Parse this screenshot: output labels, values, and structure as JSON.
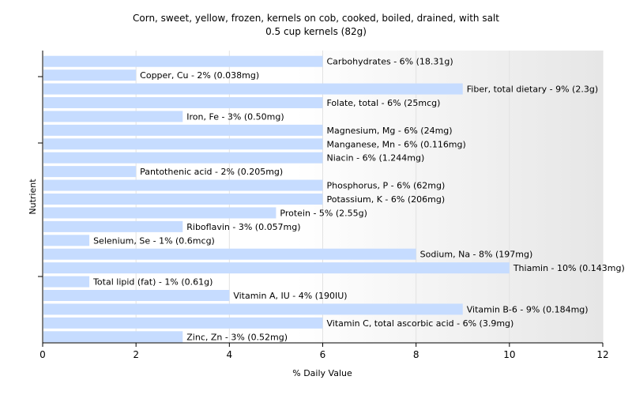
{
  "chart_data": {
    "type": "bar",
    "orientation": "horizontal",
    "title": "Corn, sweet, yellow, frozen, kernels on cob, cooked, boiled, drained, with salt",
    "subtitle": "0.5 cup kernels (82g)",
    "xlabel": "% Daily Value",
    "ylabel": "Nutrient",
    "xlim": [
      0,
      12
    ],
    "xticks": [
      "0",
      "2",
      "4",
      "6",
      "8",
      "10",
      "12"
    ],
    "grid": true,
    "bar_color": "#c6dcff",
    "categories": [
      "Carbohydrates",
      "Copper, Cu",
      "Fiber, total dietary",
      "Folate, total",
      "Iron, Fe",
      "Magnesium, Mg",
      "Manganese, Mn",
      "Niacin",
      "Pantothenic acid",
      "Phosphorus, P",
      "Potassium, K",
      "Protein",
      "Riboflavin",
      "Selenium, Se",
      "Sodium, Na",
      "Thiamin",
      "Total lipid (fat)",
      "Vitamin A, IU",
      "Vitamin B-6",
      "Vitamin C, total ascorbic acid",
      "Zinc, Zn"
    ],
    "values": [
      6,
      2,
      9,
      6,
      3,
      6,
      6,
      6,
      2,
      6,
      6,
      5,
      3,
      1,
      8,
      10,
      1,
      4,
      9,
      6,
      3
    ],
    "labels": [
      "Carbohydrates - 6% (18.31g)",
      "Copper, Cu - 2% (0.038mg)",
      "Fiber, total dietary - 9% (2.3g)",
      "Folate, total - 6% (25mcg)",
      "Iron, Fe - 3% (0.50mg)",
      "Magnesium, Mg - 6% (24mg)",
      "Manganese, Mn - 6% (0.116mg)",
      "Niacin - 6% (1.244mg)",
      "Pantothenic acid - 2% (0.205mg)",
      "Phosphorus, P - 6% (62mg)",
      "Potassium, K - 6% (206mg)",
      "Protein - 5% (2.55g)",
      "Riboflavin - 3% (0.057mg)",
      "Selenium, Se - 1% (0.6mcg)",
      "Sodium, Na - 8% (197mg)",
      "Thiamin - 10% (0.143mg)",
      "Total lipid (fat) - 1% (0.61g)",
      "Vitamin A, IU - 4% (190IU)",
      "Vitamin B-6 - 9% (0.184mg)",
      "Vitamin C, total ascorbic acid - 6% (3.9mg)",
      "Zinc, Zn - 3% (0.52mg)"
    ]
  }
}
